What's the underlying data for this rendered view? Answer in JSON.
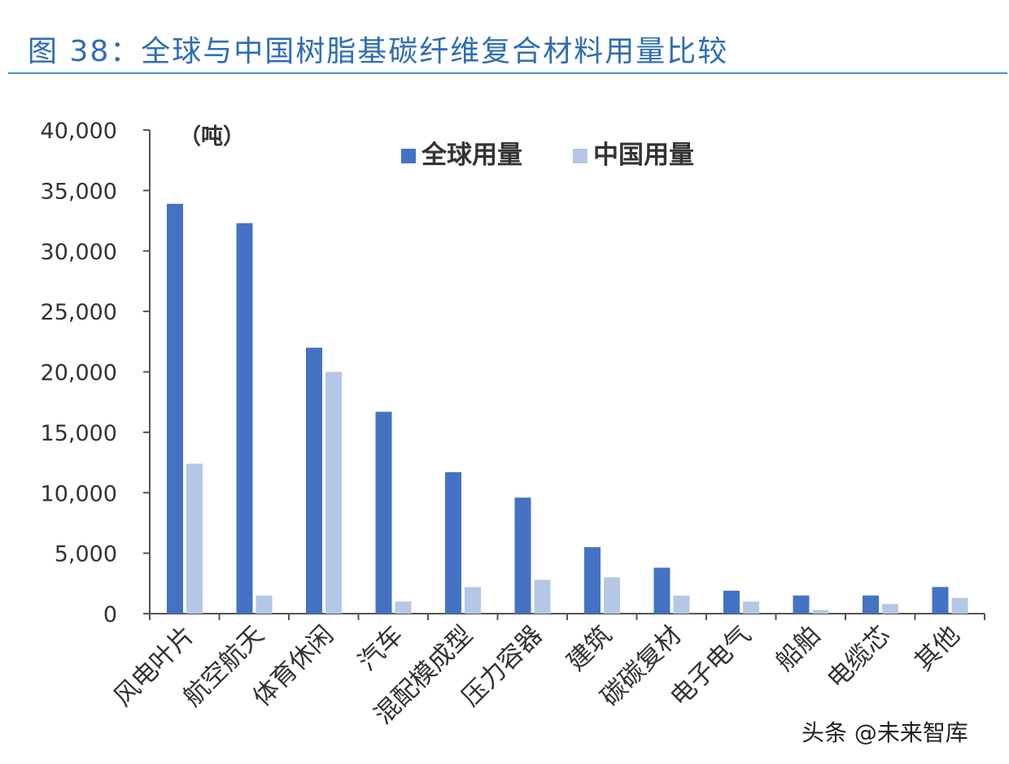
{
  "figure_title": "图 38：全球与中国树脂基碳纤维复合材料用量比较",
  "watermark": "头条 @未来智库",
  "chart_data": {
    "type": "bar",
    "unit_label": "（吨）",
    "categories": [
      "风电叶片",
      "航空航天",
      "体育休闲",
      "汽车",
      "混配模成型",
      "压力容器",
      "建筑",
      "碳碳复材",
      "电子电气",
      "船舶",
      "电缆芯",
      "其他"
    ],
    "series": [
      {
        "name": "全球用量",
        "color": "#4472c4",
        "values": [
          33900,
          32300,
          22000,
          16700,
          11700,
          9600,
          5500,
          3800,
          1900,
          1500,
          1500,
          2200
        ]
      },
      {
        "name": "中国用量",
        "color": "#b4c7e7",
        "values": [
          12400,
          1500,
          20000,
          1000,
          2200,
          2800,
          3000,
          1500,
          1000,
          300,
          800,
          1300
        ]
      }
    ],
    "ylim": [
      0,
      40000
    ],
    "yticks": [
      "0",
      "5,000",
      "10,000",
      "15,000",
      "20,000",
      "25,000",
      "30,000",
      "35,000",
      "40,000"
    ],
    "grid": false,
    "legend_position": "top-center"
  }
}
